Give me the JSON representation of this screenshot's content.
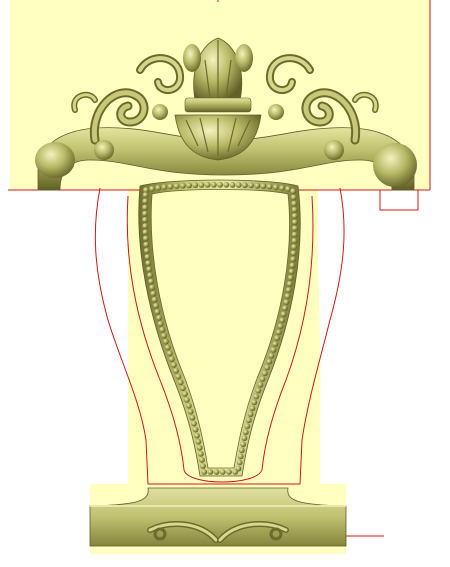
{
  "viewport": {
    "background": "#ffffff",
    "model_fill": "#ffffc0",
    "carving_base": "#b9b964",
    "carving_highlight": "#f0f0b4",
    "carving_shadow": "#6b6b2c",
    "toolpath_color": "#d01818",
    "selection_color": "#000000"
  },
  "model": {
    "parts": [
      "crest-panel",
      "chair-back-frame",
      "oval-bead-frame",
      "bottom-rail"
    ],
    "icons": [
      "scroll-ornament-icon",
      "acanthus-leaf-icon",
      "shell-ornament-icon",
      "bead-chain-icon"
    ]
  }
}
